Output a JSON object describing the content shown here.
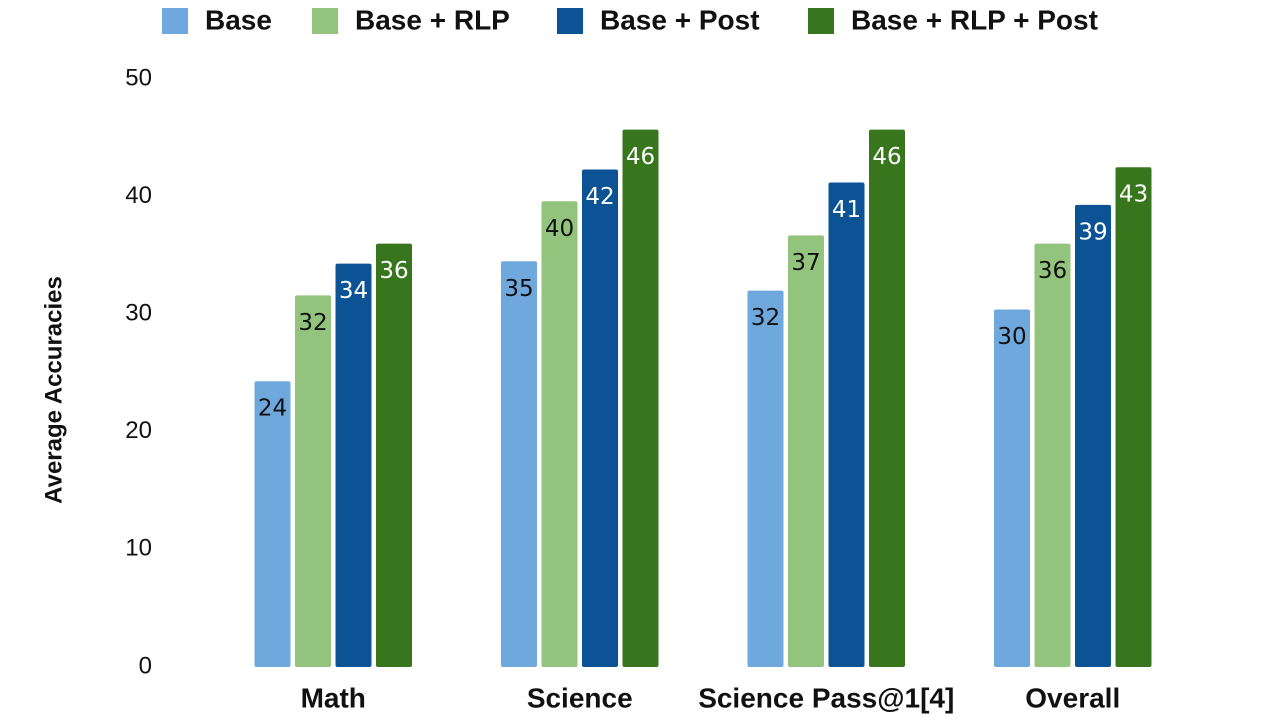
{
  "chart_data": {
    "type": "bar",
    "y_label": "Average Accuracies",
    "categories": [
      "Math",
      "Science",
      "Science Pass@1[4]",
      "Overall"
    ],
    "series": [
      {
        "name": "Base",
        "color": "#6fa8dc",
        "values": [
          24.3,
          34.5,
          32.0,
          30.4
        ],
        "value_labels": [
          "24",
          "35",
          "32",
          "30"
        ]
      },
      {
        "name": "Base + RLP",
        "color": "#93c47d",
        "values": [
          31.6,
          39.6,
          36.7,
          36.0
        ],
        "value_labels": [
          "32",
          "40",
          "37",
          "36"
        ]
      },
      {
        "name": "Base + Post",
        "color": "#0b5394",
        "values": [
          34.3,
          42.3,
          41.2,
          39.3
        ],
        "value_labels": [
          "34",
          "42",
          "41",
          "39"
        ]
      },
      {
        "name": "Base + RLP + Post",
        "color": "#38761d",
        "values": [
          36.0,
          45.7,
          45.7,
          42.5
        ],
        "value_labels": [
          "36",
          "46",
          "46",
          "43"
        ]
      }
    ],
    "ylim": [
      0,
      50
    ],
    "yticks": [
      0,
      10,
      20,
      30,
      40,
      50
    ],
    "grid": false,
    "legend": "top"
  }
}
